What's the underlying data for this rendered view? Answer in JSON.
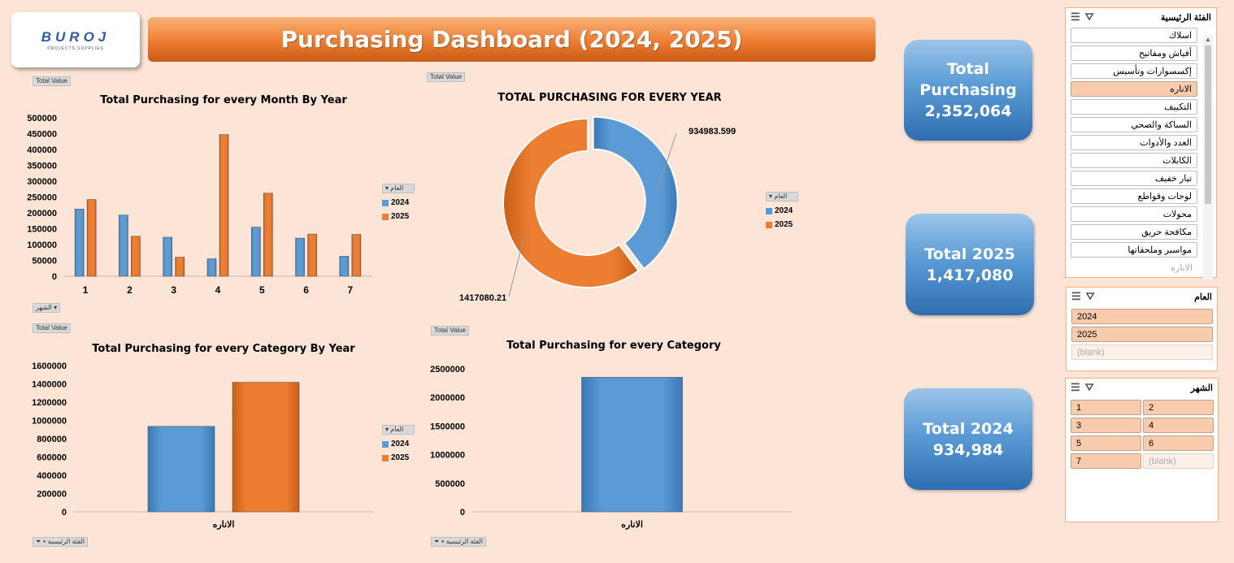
{
  "header": {
    "logo_text": "BUROJ",
    "logo_sub": "PROJECTS SUPPLIES",
    "title": "Purchasing Dashboard (2024, 2025)"
  },
  "colors": {
    "y2024": "#5b9bd5",
    "y2025": "#ed7d31"
  },
  "chart1": {
    "value_button": "Total Value",
    "axis_button": "الشهر",
    "legend_title": "العام",
    "chart_data": {
      "type": "bar",
      "title": "Total Purchasing for every Month By Year",
      "categories": [
        "1",
        "2",
        "3",
        "4",
        "5",
        "6",
        "7"
      ],
      "series": [
        {
          "name": "2024",
          "values": [
            212000,
            193000,
            123000,
            55000,
            155000,
            120000,
            63000
          ]
        },
        {
          "name": "2025",
          "values": [
            242000,
            126000,
            60000,
            447000,
            262000,
            133000,
            132000
          ]
        }
      ],
      "ylim": [
        0,
        500000
      ],
      "yticks": [
        "500000",
        "450000",
        "400000",
        "350000",
        "300000",
        "250000",
        "200000",
        "150000",
        "100000",
        "50000",
        "0"
      ]
    }
  },
  "chart2": {
    "value_button": "Total Value",
    "legend_title": "العام",
    "chart_data": {
      "type": "pie",
      "title": "TOTAL PURCHASING FOR EVERY YEAR",
      "series": [
        {
          "name": "2024",
          "value": 934983.599,
          "label": "934983.599"
        },
        {
          "name": "2025",
          "value": 1417080.21,
          "label": "1417080.21"
        }
      ]
    }
  },
  "chart3": {
    "value_button": "Total Value",
    "axis_button": "الفئة الرئيسية",
    "legend_title": "العام",
    "chart_data": {
      "type": "bar",
      "title": "Total Purchasing for every Category By Year",
      "categories": [
        "الاناره"
      ],
      "series": [
        {
          "name": "2024",
          "values": [
            934984
          ]
        },
        {
          "name": "2025",
          "values": [
            1417080
          ]
        }
      ],
      "ylim": [
        0,
        1600000
      ],
      "yticks": [
        "1600000",
        "1400000",
        "1200000",
        "1000000",
        "800000",
        "600000",
        "400000",
        "200000",
        "0"
      ]
    }
  },
  "chart4": {
    "value_button": "Total Value",
    "axis_button": "الفئة الرئيسية",
    "chart_data": {
      "type": "bar",
      "title": "Total Purchasing for every Category",
      "categories": [
        "الاناره"
      ],
      "series": [
        {
          "values": [
            2352064
          ]
        }
      ],
      "ylim": [
        0,
        2500000
      ],
      "yticks": [
        "2500000",
        "2000000",
        "1500000",
        "1000000",
        "500000",
        "0"
      ]
    }
  },
  "kpis": {
    "total": {
      "label1": "Total",
      "label2": "Purchasing",
      "value": "2,352,064"
    },
    "y2025": {
      "label": "Total 2025",
      "value": "1,417,080"
    },
    "y2024": {
      "label": "Total 2024",
      "value": "934,984"
    }
  },
  "slicers": {
    "category": {
      "title": "الفئة الرئيسية",
      "items": [
        "اسلاك",
        "أفياش ومفاتيح",
        "إكسسوارات وتأسيس",
        "الاناره",
        "التكييف",
        "السباكة والصحي",
        "العدد والأدوات",
        "الكابلات",
        "تيار خفيف",
        "لوحات وقواطع",
        "محولات",
        "مكافحة حريق",
        "مواسير وملحقاتها",
        "الاناره"
      ],
      "selected_index": 3
    },
    "year": {
      "title": "العام",
      "items": [
        "2024",
        "2025",
        "(blank)"
      ]
    },
    "month": {
      "title": "الشهر",
      "items": [
        "1",
        "2",
        "3",
        "4",
        "5",
        "6",
        "7",
        "(blank)"
      ]
    }
  }
}
